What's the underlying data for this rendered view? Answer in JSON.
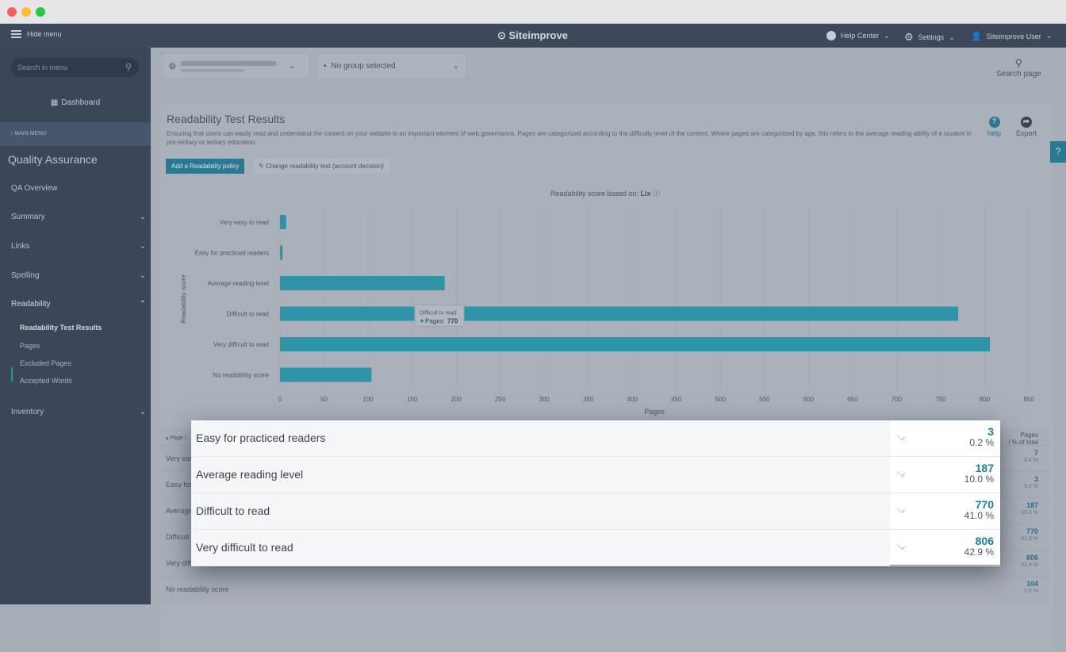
{
  "window": {
    "controls": [
      "close",
      "minimize",
      "maximize"
    ]
  },
  "header": {
    "hide_menu": "Hide menu",
    "logo": "Siteimprove",
    "help_center": "Help Center",
    "settings": "Settings",
    "user": "Siteimprove User"
  },
  "sidebar": {
    "search_placeholder": "Search in menu",
    "dashboard": "Dashboard",
    "main_menu": "MAIN MENU",
    "section": "Quality Assurance",
    "items": [
      {
        "label": "QA Overview"
      },
      {
        "label": "Summary"
      },
      {
        "label": "Links"
      },
      {
        "label": "Spelling"
      },
      {
        "label": "Readability",
        "expanded": true,
        "children": [
          {
            "label": "Readability Test Results",
            "active": true
          },
          {
            "label": "Pages"
          },
          {
            "label": "Excluded Pages"
          },
          {
            "label": "Accepted Words"
          }
        ]
      },
      {
        "label": "Inventory"
      }
    ]
  },
  "toolbar": {
    "group_select": "No group selected",
    "search_page": "Search page"
  },
  "page": {
    "title": "Readability Test Results",
    "description": "Ensuring that users can easily read and understand the content on your website is an important element of web governance. Pages are categorized according to the difficulty level of the content. Where pages are categorized by age, this refers to the average reading ability of a student in pre-tertiary or tertiary education.",
    "add_policy": "Add a Readability policy",
    "change_test": "Change readability test (account decision)",
    "help": "help",
    "export": "Export",
    "help_tab": "?"
  },
  "chart_data": {
    "type": "bar",
    "orientation": "horizontal",
    "title_prefix": "Readability score based on:",
    "title_value": "Lix",
    "categories": [
      "Very easy to read",
      "Easy for practiced readers",
      "Average reading level",
      "Difficult to read",
      "Very difficult to read",
      "No readability score"
    ],
    "values": [
      7,
      3,
      187,
      770,
      806,
      104
    ],
    "xlabel": "Pages",
    "ylabel": "Readability score",
    "xlim": [
      0,
      850
    ],
    "xticks": [
      0,
      50,
      100,
      150,
      200,
      250,
      300,
      350,
      400,
      450,
      500,
      550,
      600,
      650,
      700,
      750,
      800,
      850
    ],
    "color": "#2f93aa",
    "tooltip": {
      "title": "Difficult to read",
      "label": "Pages:",
      "value": "770"
    }
  },
  "table": {
    "header_col1": "Page r",
    "header_col2": "Pages",
    "header_col3": "| % of total",
    "rows": [
      {
        "label": "Very easy to read",
        "pages": "7",
        "pct": "0.4 %"
      },
      {
        "label": "Easy for practiced readers",
        "pages": "3",
        "pct": "0.2 %"
      },
      {
        "label": "Average reading level",
        "pages": "187",
        "pct": "10.0 %"
      },
      {
        "label": "Difficult to read",
        "pages": "770",
        "pct": "41.0 %"
      },
      {
        "label": "Very difficult to read",
        "pages": "806",
        "pct": "42.9 %"
      },
      {
        "label": "No readability score",
        "pages": "104",
        "pct": "5.5 %"
      }
    ]
  },
  "popup": {
    "rows": [
      {
        "label": "Easy for practiced readers",
        "pages": "3",
        "pct": "0.2 %"
      },
      {
        "label": "Average reading level",
        "pages": "187",
        "pct": "10.0 %"
      },
      {
        "label": "Difficult to read",
        "pages": "770",
        "pct": "41.0 %"
      },
      {
        "label": "Very difficult to read",
        "pages": "806",
        "pct": "42.9 %"
      }
    ]
  }
}
